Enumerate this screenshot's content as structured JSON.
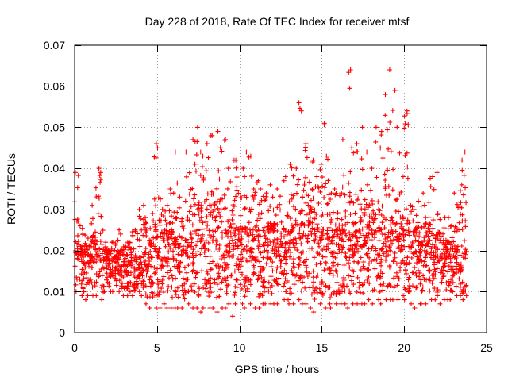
{
  "chart_data": {
    "type": "scatter",
    "title": "Day 228 of 2018, Rate Of TEC Index for receiver mtsf",
    "xlabel": "GPS time / hours",
    "ylabel": "ROTI / TECUs",
    "xlim": [
      0,
      25
    ],
    "ylim": [
      0,
      0.07
    ],
    "xticks": [
      0,
      5,
      10,
      15,
      20,
      25
    ],
    "xtick_labels": [
      "0",
      "5",
      "10",
      "15",
      "20",
      "25"
    ],
    "yticks": [
      0,
      0.01,
      0.02,
      0.03,
      0.04,
      0.05,
      0.06,
      0.07
    ],
    "ytick_labels": [
      "0",
      "0.01",
      "0.02",
      "0.03",
      "0.04",
      "0.05",
      "0.06",
      "0.07"
    ],
    "grid": true,
    "marker": "+",
    "marker_color": "#ff0000",
    "series": [
      {
        "name": "ROTI",
        "sample_step_hours": 0.25,
        "points_per_step": 24,
        "x_range": [
          0,
          23.8
        ],
        "baseline": [
          0.017,
          0.016,
          0.016,
          0.016,
          0.017,
          0.018,
          0.017,
          0.016,
          0.016,
          0.017,
          0.016,
          0.016,
          0.016,
          0.016,
          0.015,
          0.015,
          0.015,
          0.015,
          0.016,
          0.017,
          0.018,
          0.018,
          0.018,
          0.017,
          0.016,
          0.016,
          0.017,
          0.017,
          0.018,
          0.019,
          0.02,
          0.02,
          0.02,
          0.02,
          0.019,
          0.019,
          0.018,
          0.018,
          0.018,
          0.018,
          0.018,
          0.017,
          0.017,
          0.017,
          0.017,
          0.017,
          0.018,
          0.018,
          0.018,
          0.018,
          0.017,
          0.017,
          0.018,
          0.019,
          0.02,
          0.021,
          0.021,
          0.02,
          0.019,
          0.019,
          0.019,
          0.018,
          0.018,
          0.018,
          0.018,
          0.018,
          0.018,
          0.018,
          0.019,
          0.02,
          0.02,
          0.021,
          0.021,
          0.021,
          0.02,
          0.02,
          0.02,
          0.02,
          0.02,
          0.02,
          0.019,
          0.019,
          0.019,
          0.018,
          0.018,
          0.018,
          0.018,
          0.017,
          0.017,
          0.016,
          0.016,
          0.016,
          0.016,
          0.016,
          0.016,
          0.016
        ],
        "upper_envelope": [
          0.039,
          0.026,
          0.024,
          0.023,
          0.031,
          0.04,
          0.039,
          0.022,
          0.02,
          0.022,
          0.025,
          0.024,
          0.022,
          0.022,
          0.025,
          0.03,
          0.031,
          0.028,
          0.029,
          0.046,
          0.045,
          0.03,
          0.031,
          0.035,
          0.044,
          0.033,
          0.032,
          0.044,
          0.047,
          0.05,
          0.044,
          0.043,
          0.046,
          0.048,
          0.049,
          0.045,
          0.047,
          0.04,
          0.042,
          0.042,
          0.04,
          0.044,
          0.043,
          0.035,
          0.037,
          0.035,
          0.034,
          0.036,
          0.033,
          0.035,
          0.037,
          0.038,
          0.041,
          0.04,
          0.056,
          0.054,
          0.046,
          0.042,
          0.038,
          0.041,
          0.051,
          0.043,
          0.034,
          0.035,
          0.034,
          0.047,
          0.064,
          0.045,
          0.046,
          0.05,
          0.044,
          0.036,
          0.04,
          0.05,
          0.049,
          0.058,
          0.064,
          0.059,
          0.05,
          0.038,
          0.054,
          0.031,
          0.03,
          0.032,
          0.034,
          0.028,
          0.038,
          0.039,
          0.029,
          0.028,
          0.028,
          0.026,
          0.034,
          0.036,
          0.044,
          0.045
        ],
        "lower_envelope": [
          0.01,
          0.009,
          0.008,
          0.009,
          0.009,
          0.009,
          0.008,
          0.01,
          0.01,
          0.01,
          0.01,
          0.009,
          0.009,
          0.01,
          0.009,
          0.01,
          0.009,
          0.007,
          0.006,
          0.006,
          0.006,
          0.007,
          0.006,
          0.006,
          0.006,
          0.006,
          0.006,
          0.007,
          0.006,
          0.006,
          0.005,
          0.006,
          0.006,
          0.006,
          0.005,
          0.006,
          0.006,
          0.007,
          0.004,
          0.007,
          0.007,
          0.006,
          0.007,
          0.006,
          0.006,
          0.007,
          0.007,
          0.007,
          0.007,
          0.007,
          0.008,
          0.008,
          0.007,
          0.007,
          0.008,
          0.007,
          0.007,
          0.006,
          0.005,
          0.007,
          0.006,
          0.007,
          0.006,
          0.007,
          0.007,
          0.007,
          0.006,
          0.007,
          0.007,
          0.007,
          0.007,
          0.008,
          0.007,
          0.008,
          0.007,
          0.008,
          0.008,
          0.008,
          0.008,
          0.009,
          0.008,
          0.007,
          0.006,
          0.007,
          0.007,
          0.007,
          0.008,
          0.008,
          0.007,
          0.008,
          0.008,
          0.008,
          0.009,
          0.009,
          0.008,
          0.009
        ]
      }
    ]
  }
}
